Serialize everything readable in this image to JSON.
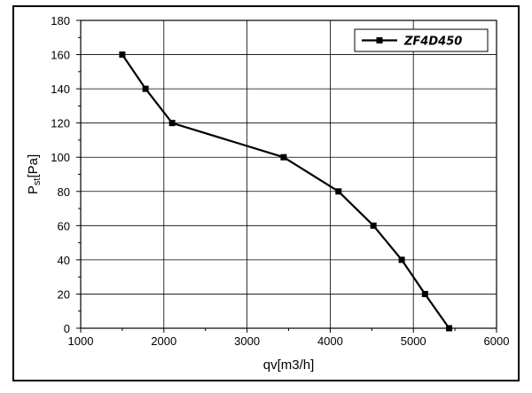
{
  "chart_data": {
    "type": "line",
    "title": "",
    "xlabel": "qv[m3/h]",
    "ylabel_main": "P",
    "ylabel_sub": "st",
    "ylabel_unit": "[Pa]",
    "xlim": [
      1000,
      6000
    ],
    "ylim": [
      0,
      180
    ],
    "x_ticks": [
      1000,
      2000,
      3000,
      4000,
      5000,
      6000
    ],
    "y_ticks": [
      0,
      20,
      40,
      60,
      80,
      100,
      120,
      140,
      160,
      180
    ],
    "grid": true,
    "legend_position": "top-right",
    "series": [
      {
        "name": "ZF4D450",
        "color": "#000000",
        "marker": "square",
        "x": [
          1500,
          1780,
          2100,
          3440,
          4100,
          4520,
          4860,
          5140,
          5430
        ],
        "y": [
          160,
          140,
          120,
          100,
          80,
          60,
          40,
          20,
          0
        ]
      }
    ]
  }
}
